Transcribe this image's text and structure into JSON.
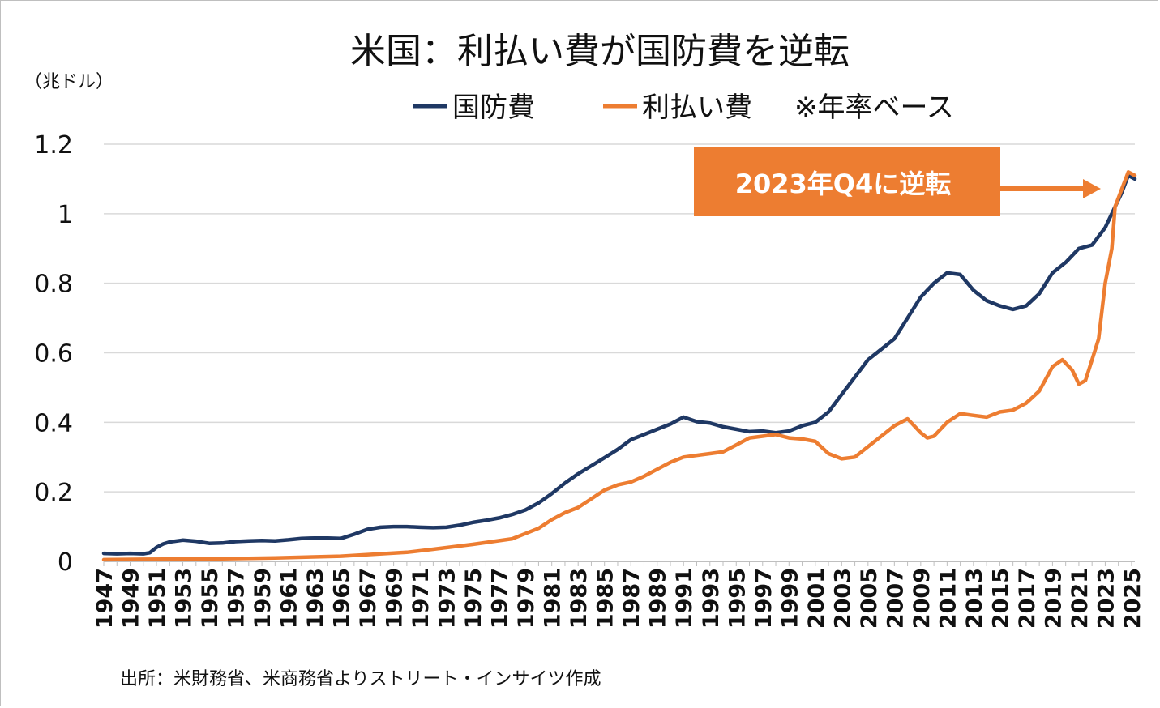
{
  "chart_data": {
    "type": "line",
    "title": "米国：利払い費が国防費を逆転",
    "unit_label": "（兆ドル）",
    "note": "※年率ベース",
    "source": "出所：米財務省、米商務省よりストリート・インサイツ作成",
    "annotation": {
      "text": "2023年Q4に逆転"
    },
    "ylim": [
      0,
      1.2
    ],
    "xlim": [
      1947,
      2025.25
    ],
    "y_ticks": [
      0,
      0.2,
      0.4,
      0.6,
      0.8,
      1.0,
      1.2
    ],
    "y_tick_labels": [
      "0",
      "0.2",
      "0.4",
      "0.6",
      "0.8",
      "1",
      "1.2"
    ],
    "x_tick_labels": [
      "1947",
      "1949",
      "1951",
      "1953",
      "1955",
      "1957",
      "1959",
      "1961",
      "1963",
      "1965",
      "1967",
      "1969",
      "1971",
      "1973",
      "1975",
      "1977",
      "1979",
      "1981",
      "1983",
      "1985",
      "1987",
      "1989",
      "1991",
      "1993",
      "1995",
      "1997",
      "1999",
      "2001",
      "2003",
      "2005",
      "2007",
      "2009",
      "2011",
      "2013",
      "2015",
      "2017",
      "2019",
      "2021",
      "2023",
      "2025"
    ],
    "grid": true,
    "legend_position": "top",
    "series": [
      {
        "name": "国防費",
        "color": "#1f3864",
        "points": [
          [
            1947,
            0.023
          ],
          [
            1948,
            0.022
          ],
          [
            1949,
            0.023
          ],
          [
            1950,
            0.022
          ],
          [
            1950.5,
            0.025
          ],
          [
            1951,
            0.04
          ],
          [
            1951.5,
            0.05
          ],
          [
            1952,
            0.056
          ],
          [
            1953,
            0.061
          ],
          [
            1954,
            0.058
          ],
          [
            1955,
            0.052
          ],
          [
            1956,
            0.053
          ],
          [
            1957,
            0.057
          ],
          [
            1958,
            0.059
          ],
          [
            1959,
            0.06
          ],
          [
            1960,
            0.059
          ],
          [
            1961,
            0.062
          ],
          [
            1962,
            0.066
          ],
          [
            1963,
            0.067
          ],
          [
            1964,
            0.067
          ],
          [
            1965,
            0.066
          ],
          [
            1966,
            0.078
          ],
          [
            1967,
            0.092
          ],
          [
            1968,
            0.098
          ],
          [
            1969,
            0.1
          ],
          [
            1970,
            0.1
          ],
          [
            1971,
            0.098
          ],
          [
            1972,
            0.097
          ],
          [
            1973,
            0.098
          ],
          [
            1974,
            0.104
          ],
          [
            1975,
            0.112
          ],
          [
            1976,
            0.118
          ],
          [
            1977,
            0.125
          ],
          [
            1978,
            0.135
          ],
          [
            1979,
            0.148
          ],
          [
            1980,
            0.168
          ],
          [
            1981,
            0.195
          ],
          [
            1982,
            0.225
          ],
          [
            1983,
            0.252
          ],
          [
            1984,
            0.275
          ],
          [
            1985,
            0.298
          ],
          [
            1986,
            0.322
          ],
          [
            1987,
            0.35
          ],
          [
            1988,
            0.365
          ],
          [
            1989,
            0.38
          ],
          [
            1990,
            0.395
          ],
          [
            1991,
            0.415
          ],
          [
            1992,
            0.402
          ],
          [
            1993,
            0.398
          ],
          [
            1994,
            0.387
          ],
          [
            1995,
            0.38
          ],
          [
            1996,
            0.373
          ],
          [
            1997,
            0.375
          ],
          [
            1998,
            0.37
          ],
          [
            1999,
            0.375
          ],
          [
            2000,
            0.39
          ],
          [
            2001,
            0.4
          ],
          [
            2002,
            0.43
          ],
          [
            2003,
            0.48
          ],
          [
            2004,
            0.53
          ],
          [
            2005,
            0.58
          ],
          [
            2006,
            0.61
          ],
          [
            2007,
            0.64
          ],
          [
            2008,
            0.7
          ],
          [
            2009,
            0.76
          ],
          [
            2010,
            0.8
          ],
          [
            2011,
            0.83
          ],
          [
            2012,
            0.825
          ],
          [
            2013,
            0.78
          ],
          [
            2014,
            0.75
          ],
          [
            2015,
            0.735
          ],
          [
            2016,
            0.725
          ],
          [
            2017,
            0.735
          ],
          [
            2018,
            0.77
          ],
          [
            2019,
            0.83
          ],
          [
            2020,
            0.86
          ],
          [
            2021,
            0.9
          ],
          [
            2022,
            0.91
          ],
          [
            2023,
            0.96
          ],
          [
            2023.75,
            1.02
          ],
          [
            2024.25,
            1.06
          ],
          [
            2024.75,
            1.11
          ],
          [
            2025.25,
            1.1
          ]
        ]
      },
      {
        "name": "利払い費",
        "color": "#ed7d31",
        "points": [
          [
            1947,
            0.005
          ],
          [
            1950,
            0.006
          ],
          [
            1955,
            0.007
          ],
          [
            1960,
            0.01
          ],
          [
            1965,
            0.015
          ],
          [
            1970,
            0.026
          ],
          [
            1972,
            0.035
          ],
          [
            1975,
            0.049
          ],
          [
            1978,
            0.065
          ],
          [
            1980,
            0.095
          ],
          [
            1981,
            0.12
          ],
          [
            1982,
            0.14
          ],
          [
            1983,
            0.155
          ],
          [
            1984,
            0.18
          ],
          [
            1985,
            0.205
          ],
          [
            1986,
            0.22
          ],
          [
            1987,
            0.228
          ],
          [
            1988,
            0.245
          ],
          [
            1989,
            0.265
          ],
          [
            1990,
            0.285
          ],
          [
            1991,
            0.3
          ],
          [
            1992,
            0.305
          ],
          [
            1993,
            0.31
          ],
          [
            1994,
            0.315
          ],
          [
            1995,
            0.335
          ],
          [
            1996,
            0.355
          ],
          [
            1997,
            0.36
          ],
          [
            1998,
            0.365
          ],
          [
            1999,
            0.355
          ],
          [
            2000,
            0.352
          ],
          [
            2001,
            0.345
          ],
          [
            2002,
            0.31
          ],
          [
            2003,
            0.295
          ],
          [
            2004,
            0.3
          ],
          [
            2005,
            0.33
          ],
          [
            2006,
            0.36
          ],
          [
            2007,
            0.39
          ],
          [
            2008,
            0.41
          ],
          [
            2009,
            0.37
          ],
          [
            2009.5,
            0.355
          ],
          [
            2010,
            0.36
          ],
          [
            2011,
            0.4
          ],
          [
            2012,
            0.425
          ],
          [
            2013,
            0.42
          ],
          [
            2014,
            0.415
          ],
          [
            2015,
            0.43
          ],
          [
            2016,
            0.435
          ],
          [
            2017,
            0.455
          ],
          [
            2018,
            0.49
          ],
          [
            2019,
            0.56
          ],
          [
            2019.75,
            0.58
          ],
          [
            2020.5,
            0.55
          ],
          [
            2021,
            0.51
          ],
          [
            2021.5,
            0.52
          ],
          [
            2022,
            0.58
          ],
          [
            2022.5,
            0.64
          ],
          [
            2023,
            0.8
          ],
          [
            2023.5,
            0.9
          ],
          [
            2023.75,
            1.02
          ],
          [
            2024.25,
            1.07
          ],
          [
            2024.75,
            1.12
          ],
          [
            2025.25,
            1.11
          ]
        ]
      }
    ]
  }
}
